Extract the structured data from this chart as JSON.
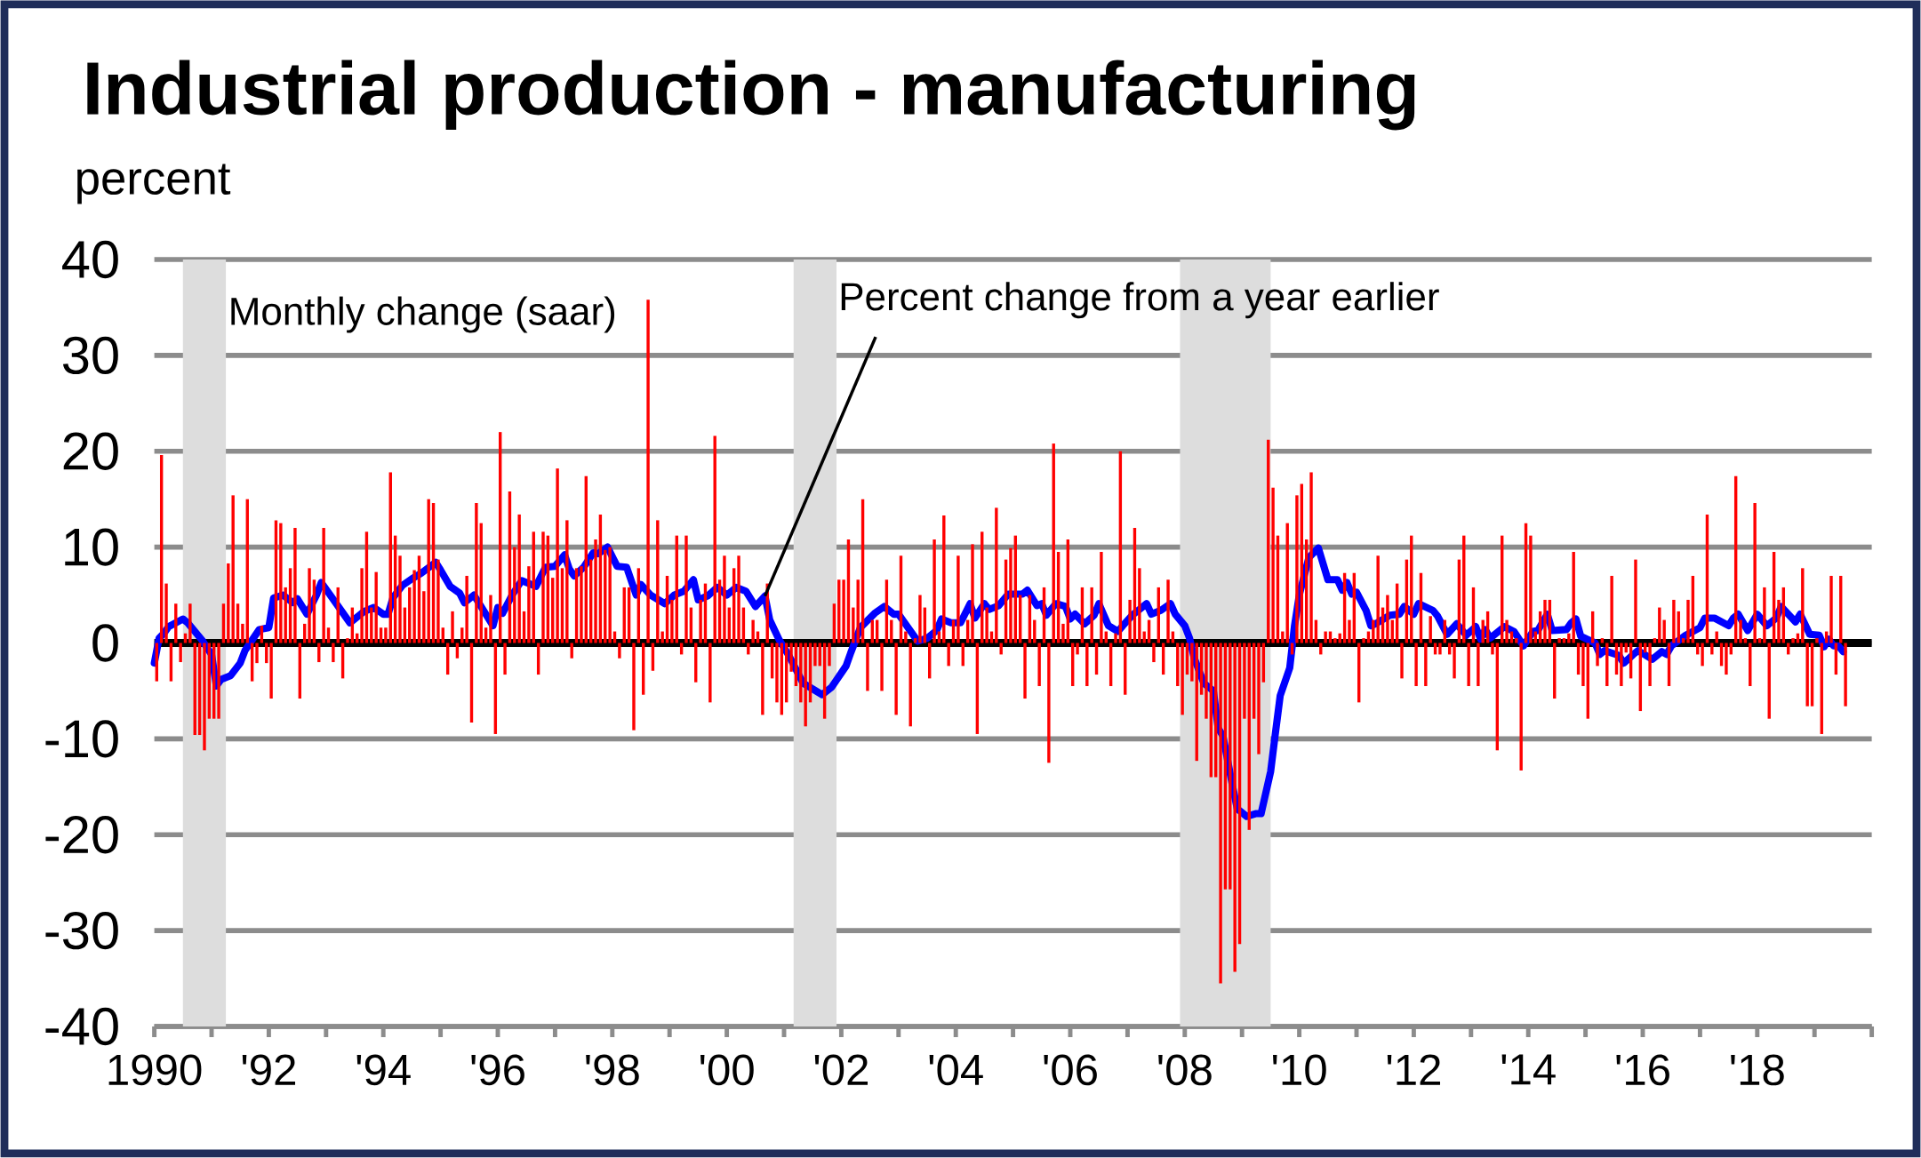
{
  "chart_data": {
    "type": "bar",
    "title": "Industrial production - manufacturing",
    "ylabel": "percent",
    "annotations": [
      "Monthly change (saar)",
      {
        "text": "Percent change from a year earlier",
        "x": "2000-09",
        "y": 4.9
      }
    ],
    "xlim": [
      "1990",
      "2020"
    ],
    "xticks": [
      {
        "value": "1990",
        "label": "1990"
      },
      {
        "value": "1991",
        "label": null
      },
      {
        "value": "1992",
        "label": "'92"
      },
      {
        "value": "1993",
        "label": null
      },
      {
        "value": "1994",
        "label": "'94"
      },
      {
        "value": "1995",
        "label": null
      },
      {
        "value": "1996",
        "label": "'96"
      },
      {
        "value": "1997",
        "label": null
      },
      {
        "value": "1998",
        "label": "'98"
      },
      {
        "value": "1999",
        "label": null
      },
      {
        "value": "2000",
        "label": "'00"
      },
      {
        "value": "2001",
        "label": null
      },
      {
        "value": "2002",
        "label": "'02"
      },
      {
        "value": "2003",
        "label": null
      },
      {
        "value": "2004",
        "label": "'04"
      },
      {
        "value": "2005",
        "label": null
      },
      {
        "value": "2006",
        "label": "'06"
      },
      {
        "value": "2007",
        "label": null
      },
      {
        "value": "2008",
        "label": "'08"
      },
      {
        "value": "2009",
        "label": null
      },
      {
        "value": "2010",
        "label": "'10"
      },
      {
        "value": "2011",
        "label": null
      },
      {
        "value": "2012",
        "label": "'12"
      },
      {
        "value": "2013",
        "label": null
      },
      {
        "value": "2014",
        "label": "'14"
      },
      {
        "value": "2015",
        "label": null
      },
      {
        "value": "2016",
        "label": "'16"
      },
      {
        "value": "2017",
        "label": null
      },
      {
        "value": "2018",
        "label": "'18"
      },
      {
        "value": "2019",
        "label": null
      },
      {
        "value": "2020",
        "label": null
      }
    ],
    "ylim": [
      -40,
      40
    ],
    "yticks": [
      -40,
      -30,
      -20,
      -10,
      0,
      10,
      20,
      30,
      40
    ],
    "grid": "y",
    "bands": [
      {
        "axis": "x",
        "from": "1990-07",
        "to": "1991-03",
        "color": "#dddddd"
      },
      {
        "axis": "x",
        "from": "2001-03",
        "to": "2001-11",
        "color": "#dddddd"
      },
      {
        "axis": "x",
        "from": "2007-12",
        "to": "2009-06",
        "color": "#dddddd"
      }
    ],
    "ref_lines": [
      {
        "axis": "y",
        "value": 0,
        "color": "#000000"
      }
    ],
    "series": [
      {
        "color": "#ff0000",
        "x": [
          "1990-01",
          "1990-02",
          "1990-03",
          "1990-04",
          "1990-05",
          "1990-06",
          "1990-07",
          "1990-08",
          "1990-09",
          "1990-10",
          "1990-11",
          "1990-12",
          "1991-01",
          "1991-02",
          "1991-03",
          "1991-04",
          "1991-05",
          "1991-06",
          "1991-07",
          "1991-08",
          "1991-09",
          "1991-10",
          "1991-11",
          "1991-12",
          "1992-01",
          "1992-02",
          "1992-03",
          "1992-04",
          "1992-05",
          "1992-06",
          "1992-07",
          "1992-08",
          "1992-09",
          "1992-10",
          "1992-11",
          "1992-12",
          "1993-01",
          "1993-02",
          "1993-03",
          "1993-04",
          "1993-05",
          "1993-06",
          "1993-07",
          "1993-08",
          "1993-09",
          "1993-10",
          "1993-11",
          "1993-12",
          "1994-01",
          "1994-02",
          "1994-03",
          "1994-04",
          "1994-05",
          "1994-06",
          "1994-07",
          "1994-08",
          "1994-09",
          "1994-10",
          "1994-11",
          "1994-12",
          "1995-01",
          "1995-02",
          "1995-03",
          "1995-04",
          "1995-05",
          "1995-06",
          "1995-07",
          "1995-08",
          "1995-09",
          "1995-10",
          "1995-11",
          "1995-12",
          "1996-01",
          "1996-02",
          "1996-03",
          "1996-04",
          "1996-05",
          "1996-06",
          "1996-07",
          "1996-08",
          "1996-09",
          "1996-10",
          "1996-11",
          "1996-12",
          "1997-01",
          "1997-02",
          "1997-03",
          "1997-04",
          "1997-05",
          "1997-06",
          "1997-07",
          "1997-08",
          "1997-09",
          "1997-10",
          "1997-11",
          "1997-12",
          "1998-01",
          "1998-02",
          "1998-03",
          "1998-04",
          "1998-05",
          "1998-06",
          "1998-07",
          "1998-08",
          "1998-09",
          "1998-10",
          "1998-11",
          "1998-12",
          "1999-01",
          "1999-02",
          "1999-03",
          "1999-04",
          "1999-05",
          "1999-06",
          "1999-07",
          "1999-08",
          "1999-09",
          "1999-10",
          "1999-11",
          "1999-12",
          "2000-01",
          "2000-02",
          "2000-03",
          "2000-04",
          "2000-05",
          "2000-06",
          "2000-07",
          "2000-08",
          "2000-09",
          "2000-10",
          "2000-11",
          "2000-12",
          "2001-01",
          "2001-02",
          "2001-03",
          "2001-04",
          "2001-05",
          "2001-06",
          "2001-07",
          "2001-08",
          "2001-09",
          "2001-10",
          "2001-11",
          "2001-12",
          "2002-01",
          "2002-02",
          "2002-03",
          "2002-04",
          "2002-05",
          "2002-06",
          "2002-07",
          "2002-08",
          "2002-09",
          "2002-10",
          "2002-11",
          "2002-12",
          "2003-01",
          "2003-02",
          "2003-03",
          "2003-04",
          "2003-05",
          "2003-06",
          "2003-07",
          "2003-08",
          "2003-09",
          "2003-10",
          "2003-11",
          "2003-12",
          "2004-01",
          "2004-02",
          "2004-03",
          "2004-04",
          "2004-05",
          "2004-06",
          "2004-07",
          "2004-08",
          "2004-09",
          "2004-10",
          "2004-11",
          "2004-12",
          "2005-01",
          "2005-02",
          "2005-03",
          "2005-04",
          "2005-05",
          "2005-06",
          "2005-07",
          "2005-08",
          "2005-09",
          "2005-10",
          "2005-11",
          "2005-12",
          "2006-01",
          "2006-02",
          "2006-03",
          "2006-04",
          "2006-05",
          "2006-06",
          "2006-07",
          "2006-08",
          "2006-09",
          "2006-10",
          "2006-11",
          "2006-12",
          "2007-01",
          "2007-02",
          "2007-03",
          "2007-04",
          "2007-05",
          "2007-06",
          "2007-07",
          "2007-08",
          "2007-09",
          "2007-10",
          "2007-11",
          "2007-12",
          "2008-01",
          "2008-02",
          "2008-03",
          "2008-04",
          "2008-05",
          "2008-06",
          "2008-07",
          "2008-08",
          "2008-09",
          "2008-10",
          "2008-11",
          "2008-12",
          "2009-01",
          "2009-02",
          "2009-03",
          "2009-04",
          "2009-05",
          "2009-06",
          "2009-07",
          "2009-08",
          "2009-09",
          "2009-10",
          "2009-11",
          "2009-12",
          "2010-01",
          "2010-02",
          "2010-03",
          "2010-04",
          "2010-05",
          "2010-06",
          "2010-07",
          "2010-08",
          "2010-09",
          "2010-10",
          "2010-11",
          "2010-12",
          "2011-01",
          "2011-02",
          "2011-03",
          "2011-04",
          "2011-05",
          "2011-06",
          "2011-07",
          "2011-08",
          "2011-09",
          "2011-10",
          "2011-11",
          "2011-12",
          "2012-01",
          "2012-02",
          "2012-03",
          "2012-04",
          "2012-05",
          "2012-06",
          "2012-07",
          "2012-08",
          "2012-09",
          "2012-10",
          "2012-11",
          "2012-12",
          "2013-01",
          "2013-02",
          "2013-03",
          "2013-04",
          "2013-05",
          "2013-06",
          "2013-07",
          "2013-08",
          "2013-09",
          "2013-10",
          "2013-11",
          "2013-12",
          "2014-01",
          "2014-02",
          "2014-03",
          "2014-04",
          "2014-05",
          "2014-06",
          "2014-07",
          "2014-08",
          "2014-09",
          "2014-10",
          "2014-11",
          "2014-12",
          "2015-01",
          "2015-02",
          "2015-03",
          "2015-04",
          "2015-05",
          "2015-06",
          "2015-07",
          "2015-08",
          "2015-09",
          "2015-10",
          "2015-11",
          "2015-12",
          "2016-01",
          "2016-02",
          "2016-03",
          "2016-04",
          "2016-05",
          "2016-06",
          "2016-07",
          "2016-08",
          "2016-09",
          "2016-10",
          "2016-11",
          "2016-12",
          "2017-01",
          "2017-02",
          "2017-03",
          "2017-04",
          "2017-05",
          "2017-06",
          "2017-07",
          "2017-08",
          "2017-09",
          "2017-10",
          "2017-11",
          "2017-12",
          "2018-01",
          "2018-02",
          "2018-03",
          "2018-04",
          "2018-05",
          "2018-06",
          "2018-07",
          "2018-08",
          "2018-09",
          "2018-10",
          "2018-11",
          "2018-12",
          "2019-01",
          "2019-02",
          "2019-03",
          "2019-04",
          "2019-05",
          "2019-06",
          "2019-07"
        ],
        "values": [
          -4,
          19.6,
          6.2,
          -4,
          4.1,
          -2,
          1,
          4.1,
          -9.6,
          -9.6,
          -11.2,
          -7.9,
          -7.9,
          -7.9,
          4.1,
          8.3,
          15.4,
          4.1,
          2,
          15,
          -4,
          -2.1,
          1.8,
          -2.1,
          -5.8,
          12.8,
          12.5,
          5.8,
          7.8,
          12,
          -5.8,
          2,
          7.8,
          6.6,
          -2,
          12,
          1.6,
          -2,
          5.8,
          -3.7,
          0.5,
          3.7,
          1,
          7.8,
          11.6,
          3.7,
          7.4,
          1.6,
          1.6,
          17.8,
          11.2,
          9.1,
          3.7,
          5.8,
          7.6,
          9.1,
          5.4,
          15,
          14.6,
          8.7,
          1.6,
          -3.3,
          3.3,
          -1.6,
          1.6,
          7,
          -8.3,
          14.6,
          12.5,
          1.6,
          5,
          -9.5,
          22,
          -3.3,
          15.8,
          10,
          13.4,
          3.3,
          8,
          11.6,
          -3.3,
          11.6,
          11.2,
          6.8,
          18.2,
          7.8,
          12.8,
          -1.6,
          7.8,
          8,
          17.4,
          8.7,
          10.8,
          13.4,
          9.7,
          10,
          1.2,
          -1.6,
          5.8,
          5.8,
          -9.1,
          7.8,
          -5.4,
          35.8,
          -2.9,
          12.8,
          1.2,
          7,
          4.5,
          11.2,
          -1.2,
          11.2,
          3.7,
          -4.1,
          4.5,
          6.2,
          -6.2,
          21.6,
          6.6,
          9.1,
          3.7,
          7.8,
          9.1,
          3.7,
          -1.2,
          2.4,
          1.2,
          -7.5,
          6.2,
          -3.7,
          -6.2,
          -7.5,
          -6.2,
          -3,
          -4.5,
          -6.2,
          -8.7,
          -6.2,
          -2.4,
          -2.4,
          -7.9,
          -2.4,
          4.1,
          6.6,
          6.6,
          10.8,
          3.7,
          6.6,
          15,
          -5,
          2.4,
          2.4,
          -5,
          6.6,
          2.4,
          -7.5,
          9.1,
          1.2,
          -8.7,
          0.5,
          5,
          3.7,
          -3.7,
          10.8,
          1.2,
          13.3,
          -2.4,
          2.4,
          9.1,
          -2.4,
          2.4,
          10.3,
          -9.5,
          11.6,
          3.7,
          1.2,
          14.1,
          -1.2,
          8.7,
          9.9,
          11.2,
          5,
          -5.8,
          5,
          2.4,
          -4.5,
          5.8,
          -12.5,
          20.8,
          9.5,
          2,
          10.8,
          -4.5,
          -1.2,
          5.8,
          -4.5,
          5.8,
          -3.3,
          9.5,
          1.2,
          -4.5,
          1,
          20,
          -5.4,
          4.5,
          12,
          7.8,
          1.2,
          2.4,
          -2,
          5.8,
          -3.3,
          6.6,
          1.2,
          -4.5,
          -7.5,
          -3.3,
          -4,
          -12.3,
          -5.4,
          -7.9,
          -14,
          -14,
          -35.5,
          -25.7,
          -25.7,
          -34.3,
          -31.4,
          -7.9,
          -19.5,
          -7.9,
          -11.6,
          -4.1,
          21.2,
          16.2,
          11.2,
          1.2,
          12.5,
          -1.2,
          15.4,
          16.6,
          10.8,
          17.8,
          2.4,
          -1.2,
          1.2,
          1.2,
          0.5,
          1,
          7.3,
          2.4,
          7.3,
          -6.2,
          0.5,
          1.2,
          2.4,
          9.1,
          3.7,
          5,
          2.4,
          6.2,
          -3.7,
          8.7,
          11.2,
          -4.5,
          7.3,
          -4.5,
          2.8,
          -1.2,
          -1.2,
          2.4,
          -1.2,
          -3.7,
          8.7,
          11.2,
          -4.5,
          5.8,
          -4.5,
          2.4,
          3.3,
          -1.2,
          -11.2,
          11.2,
          2.4,
          1.2,
          0.5,
          -13.3,
          12.5,
          11.2,
          1.2,
          3.3,
          4.5,
          4.5,
          -5.8,
          0.5,
          0.5,
          1,
          9.5,
          -3.3,
          -4.5,
          -7.9,
          3.3,
          -2.4,
          0.5,
          -4.5,
          7,
          -3.3,
          -4.5,
          -1,
          -3.7,
          8.7,
          -7.1,
          -1,
          -4.5,
          0.5,
          3.7,
          2.4,
          -4.5,
          4.5,
          3.3,
          0.5,
          4.5,
          7,
          -1.2,
          -2.4,
          13.4,
          -1.2,
          1.2,
          -2.4,
          -3.3,
          -1.2,
          17.4,
          2.4,
          0.5,
          -4.5,
          14.6,
          0.5,
          5.8,
          -7.9,
          9.5,
          4.5,
          5.8,
          -1.2,
          0.5,
          1,
          7.8,
          -6.6,
          -6.6,
          0.5,
          -9.5,
          1.2,
          7,
          -3.3,
          7,
          -6.6
        ]
      },
      {
        "type": "line",
        "color": "#0000ff",
        "line_style": "solid",
        "x": [
          "1990-01",
          "1990-02",
          "1990-03",
          "1990-04",
          "1990-07",
          "1990-08",
          "1990-11",
          "1991-01",
          "1991-02",
          "1991-03",
          "1991-05",
          "1991-07",
          "1991-08",
          "1991-11",
          "1992-01",
          "1992-02",
          "1992-04",
          "1992-06",
          "1992-07",
          "1992-09",
          "1992-11",
          "1992-12",
          "1993-03",
          "1993-06",
          "1993-09",
          "1993-11",
          "1994-01",
          "1994-02",
          "1994-03",
          "1994-05",
          "1994-07",
          "1994-09",
          "1994-12",
          "1995-01",
          "1995-03",
          "1995-05",
          "1995-06",
          "1995-08",
          "1995-12",
          "1996-01",
          "1996-02",
          "1996-04",
          "1996-06",
          "1996-09",
          "1996-11",
          "1997-01",
          "1997-03",
          "1997-04",
          "1997-05",
          "1997-07",
          "1997-09",
          "1997-10",
          "1997-12",
          "1998-02",
          "1998-04",
          "1998-06",
          "1998-07",
          "1998-09",
          "1998-12",
          "1999-02",
          "1999-04",
          "1999-06",
          "1999-07",
          "1999-09",
          "1999-11",
          "2000-01",
          "2000-03",
          "2000-05",
          "2000-07",
          "2000-09",
          "2000-10",
          "2000-12",
          "2001-02",
          "2001-05",
          "2001-06",
          "2001-09",
          "2001-11",
          "2002-02",
          "2002-03",
          "2002-05",
          "2002-08",
          "2002-10",
          "2002-12",
          "2003-01",
          "2003-05",
          "2003-07",
          "2003-09",
          "2003-10",
          "2003-12",
          "2004-02",
          "2004-04",
          "2004-05",
          "2004-07",
          "2004-08",
          "2004-10",
          "2004-12",
          "2005-03",
          "2005-04",
          "2005-06",
          "2005-07",
          "2005-08",
          "2005-10",
          "2005-12",
          "2006-01",
          "2006-02",
          "2006-04",
          "2006-06",
          "2006-07",
          "2006-09",
          "2006-11",
          "2006-12",
          "2007-02",
          "2007-04",
          "2007-05",
          "2007-06",
          "2007-08",
          "2007-10",
          "2007-11",
          "2008-01",
          "2008-02",
          "2008-03",
          "2008-05",
          "2008-07",
          "2008-08",
          "2008-09",
          "2008-11",
          "2008-12",
          "2009-02",
          "2009-04",
          "2009-05",
          "2009-07",
          "2009-08",
          "2009-09",
          "2009-11",
          "2009-12",
          "2010-01",
          "2010-03",
          "2010-05",
          "2010-07",
          "2010-09",
          "2010-10",
          "2010-11",
          "2010-12",
          "2011-01",
          "2011-03",
          "2011-04",
          "2011-05",
          "2011-08",
          "2011-10",
          "2011-11",
          "2012-01",
          "2012-02",
          "2012-05",
          "2012-06",
          "2012-08",
          "2012-10",
          "2012-12",
          "2013-02",
          "2013-03",
          "2013-04",
          "2013-05",
          "2013-08",
          "2013-10",
          "2013-12",
          "2014-02",
          "2014-03",
          "2014-05",
          "2014-06",
          "2014-09",
          "2014-10",
          "2014-11",
          "2014-12",
          "2015-03",
          "2015-04",
          "2015-05",
          "2015-08",
          "2015-09",
          "2015-11",
          "2015-12",
          "2016-03",
          "2016-05",
          "2016-06",
          "2016-07",
          "2016-10",
          "2017-01",
          "2017-02",
          "2017-04",
          "2017-07",
          "2017-08",
          "2017-09",
          "2017-11",
          "2018-01",
          "2018-03",
          "2018-05",
          "2018-06",
          "2018-09",
          "2018-10",
          "2018-12",
          "2019-02",
          "2019-03",
          "2019-04",
          "2019-05",
          "2019-06",
          "2019-07"
        ],
        "values": [
          -2.1,
          0.5,
          1,
          1.7,
          2.5,
          2.1,
          0.3,
          -1.2,
          -4.5,
          -3.8,
          -3.4,
          -2.1,
          -0.8,
          1.4,
          1.6,
          4.7,
          5,
          4.2,
          4.6,
          3,
          5,
          6.3,
          4.2,
          2.1,
          3.3,
          3.7,
          3,
          3,
          4.7,
          6,
          6.7,
          7.3,
          8.4,
          7.6,
          5.9,
          5.2,
          4.2,
          5,
          1.8,
          3.7,
          3.1,
          5,
          6.5,
          5.9,
          7.9,
          8,
          9.2,
          7.7,
          7,
          7.9,
          9.4,
          9.3,
          10,
          8,
          7.9,
          5,
          6.1,
          5,
          4.1,
          5,
          5.4,
          6.6,
          4.5,
          4.9,
          5.8,
          5,
          5.8,
          5.4,
          3.8,
          4.9,
          2.4,
          0.3,
          -1.3,
          -4.2,
          -4.5,
          -5.4,
          -4.6,
          -2.4,
          -1,
          1.6,
          3.1,
          3.8,
          3,
          3,
          0.2,
          0.5,
          1.3,
          2.5,
          2.1,
          2.1,
          4.1,
          2.6,
          4.1,
          3.5,
          3.9,
          5.1,
          5.1,
          5.5,
          3.9,
          4.1,
          2.9,
          4.1,
          3.8,
          2.5,
          3,
          2,
          2.9,
          4.1,
          1.8,
          1.2,
          1.8,
          2.9,
          3.7,
          4.1,
          3,
          3.4,
          4.1,
          3,
          1.8,
          0.5,
          -1.6,
          -4.2,
          -5,
          -8.9,
          -9.7,
          -14.9,
          -17.3,
          -18.1,
          -17.8,
          -17.8,
          -13.4,
          -9.4,
          -5.5,
          -2.6,
          1.8,
          5,
          8.9,
          9.9,
          6.6,
          6.6,
          5.5,
          6.3,
          5.1,
          5.3,
          3.4,
          1.8,
          2,
          2.9,
          3,
          3.8,
          3,
          4.1,
          3.4,
          2.8,
          0.9,
          2,
          0.8,
          1.7,
          0.4,
          1.4,
          0.5,
          1.7,
          1.2,
          -0.3,
          1.2,
          1.3,
          3,
          1.3,
          1.4,
          2.1,
          2.5,
          0.7,
          0,
          -1.2,
          -0.8,
          -1.3,
          -2.1,
          -1.2,
          -0.8,
          -1.7,
          -0.9,
          -1.2,
          -0.3,
          0.8,
          1.6,
          2.6,
          2.6,
          1.8,
          2.6,
          3,
          1.3,
          3,
          1.8,
          2.6,
          3.8,
          2.2,
          3,
          0.9,
          0.8,
          -0.4,
          0.4,
          -0.3,
          -0.3,
          -0.9
        ]
      }
    ]
  }
}
